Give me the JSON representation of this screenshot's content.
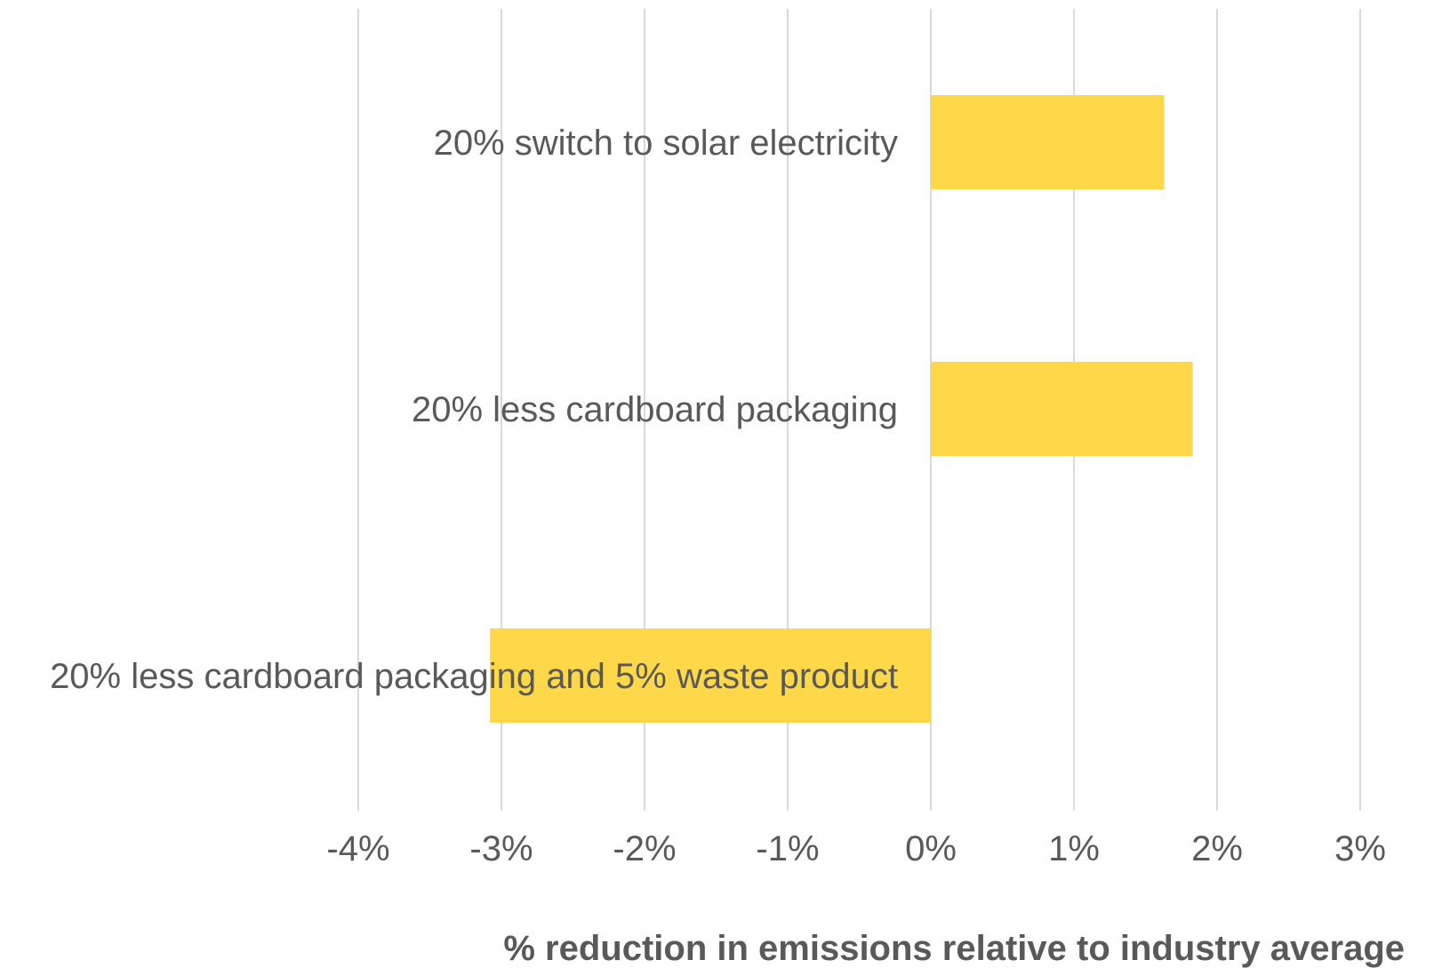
{
  "chart_data": {
    "type": "bar",
    "orientation": "horizontal",
    "categories": [
      "20% switch to solar electricity",
      "20% less cardboard packaging",
      "20% less cardboard packaging and 5% waste product"
    ],
    "values": [
      1.63,
      1.83,
      -3.08
    ],
    "xlabel": "% reduction in emissions relative to industry average",
    "ylabel": "",
    "xlim": [
      -4,
      3
    ],
    "x_ticks": [
      -4,
      -3,
      -2,
      -1,
      0,
      1,
      2,
      3
    ],
    "x_tick_labels": [
      "-4%",
      "-3%",
      "-2%",
      "-1%",
      "0%",
      "1%",
      "2%",
      "3%"
    ],
    "grid": true,
    "bar_color": "#FFD84A",
    "text_color": "#595959",
    "grid_color": "#D9D9D9"
  }
}
